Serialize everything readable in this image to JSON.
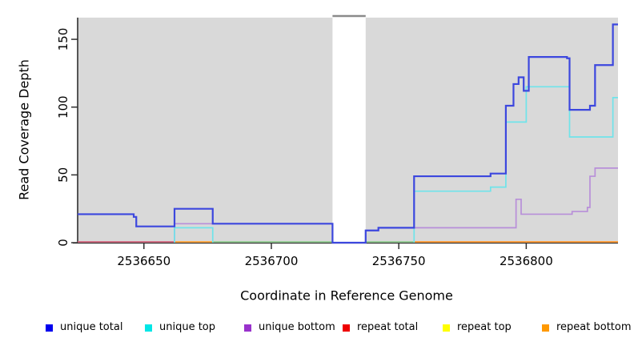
{
  "chart_data": {
    "type": "line",
    "subtype": "step-coverage",
    "title": "",
    "xlabel": "Coordinate in Reference Genome",
    "ylabel": "Read Coverage Depth",
    "xlim": [
      2536624,
      2536836
    ],
    "ylim": [
      0,
      166
    ],
    "x_ticks": [
      2536650,
      2536700,
      2536750,
      2536800
    ],
    "y_ticks": [
      0,
      50,
      100,
      150
    ],
    "grid": "off",
    "legend_position": "bottom",
    "panel_bg": "#d9d9d9",
    "axis_color": "#303030",
    "text_color": "#000000",
    "gap_region": {
      "from": 2536724,
      "to": 2536737,
      "fill": "#ffffff",
      "cap_color": "#8a8a8a"
    },
    "zero_line_segments": [
      {
        "from": 2536624,
        "to": 2536662,
        "color": "#d0607a"
      },
      {
        "from": 2536662,
        "to": 2536677,
        "color": "#ffa030"
      },
      {
        "from": 2536677,
        "to": 2536724,
        "color": "#8cc98c"
      },
      {
        "from": 2536737,
        "to": 2536756,
        "color": "#8cc98c"
      },
      {
        "from": 2536756,
        "to": 2536836,
        "color": "#ff9428"
      }
    ],
    "series": [
      {
        "name": "unique total",
        "legend_color": "#0000ee",
        "line_color": "#3c47de",
        "line_width": 2.2,
        "edge_start": true,
        "draw_zero": true,
        "points": [
          [
            2536624,
            21
          ],
          [
            2536646,
            19
          ],
          [
            2536647,
            12
          ],
          [
            2536662,
            25
          ],
          [
            2536677,
            14
          ],
          [
            2536724,
            0
          ],
          [
            2536737,
            9
          ],
          [
            2536742,
            11
          ],
          [
            2536756,
            49
          ],
          [
            2536786,
            51
          ],
          [
            2536792,
            101
          ],
          [
            2536795,
            117
          ],
          [
            2536797,
            122
          ],
          [
            2536799,
            112
          ],
          [
            2536801,
            137
          ],
          [
            2536816,
            136
          ],
          [
            2536817,
            98
          ],
          [
            2536825,
            101
          ],
          [
            2536827,
            131
          ],
          [
            2536834,
            161
          ]
        ]
      },
      {
        "name": "unique top",
        "legend_color": "#00e6e6",
        "line_color": "#6fe4ea",
        "line_width": 1.7,
        "edge_start": false,
        "draw_zero": false,
        "points": [
          [
            2536662,
            11
          ],
          [
            2536677,
            0
          ],
          [
            2536756,
            38
          ],
          [
            2536786,
            41
          ],
          [
            2536792,
            89
          ],
          [
            2536800,
            115
          ],
          [
            2536817,
            78
          ],
          [
            2536834,
            107
          ]
        ]
      },
      {
        "name": "unique bottom",
        "legend_color": "#9932cc",
        "line_color": "#b88fd9",
        "line_width": 1.7,
        "edge_start": false,
        "draw_zero": true,
        "points": [
          [
            2536662,
            14
          ],
          [
            2536724,
            0
          ],
          [
            2536737,
            9
          ],
          [
            2536742,
            11
          ],
          [
            2536796,
            32
          ],
          [
            2536798,
            21
          ],
          [
            2536818,
            23
          ],
          [
            2536824,
            26
          ],
          [
            2536825,
            49
          ],
          [
            2536827,
            55
          ]
        ]
      },
      {
        "name": "repeat total",
        "legend_color": "#ee0000",
        "line_color": "#d0607a",
        "line_width": 1.5,
        "edge_start": true,
        "draw_zero": false,
        "points": [
          [
            2536624,
            0
          ]
        ]
      },
      {
        "name": "repeat top",
        "legend_color": "#ffff00",
        "line_color": "#ffff00",
        "line_width": 1.5,
        "edge_start": true,
        "draw_zero": false,
        "points": [
          [
            2536624,
            0
          ]
        ]
      },
      {
        "name": "repeat bottom",
        "legend_color": "#ff9900",
        "line_color": "#ff9428",
        "line_width": 1.5,
        "edge_start": true,
        "draw_zero": false,
        "points": [
          [
            2536624,
            0
          ]
        ]
      }
    ]
  }
}
